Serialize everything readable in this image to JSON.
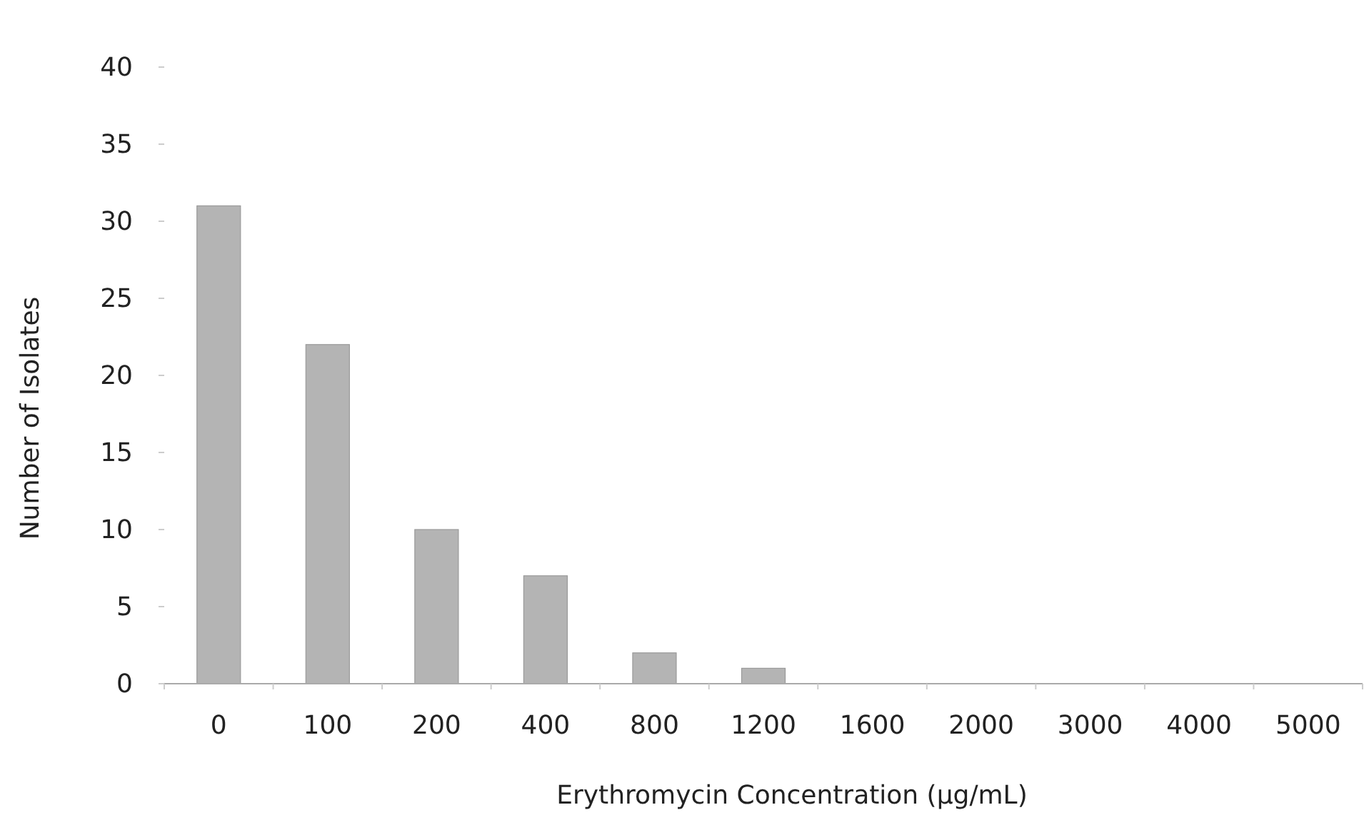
{
  "chart_data": {
    "type": "bar",
    "xlabel": "Erythromycin Concentration (μg/mL)",
    "ylabel": "Number of Isolates",
    "categories": [
      "0",
      "100",
      "200",
      "400",
      "800",
      "1200",
      "1600",
      "2000",
      "3000",
      "4000",
      "5000"
    ],
    "values": [
      31,
      22,
      10,
      7,
      2,
      1,
      0,
      0,
      0,
      0,
      0
    ],
    "color": "#b4b4b4",
    "ylim": [
      0,
      40
    ],
    "yticks": [
      0,
      5,
      10,
      15,
      20,
      25,
      30,
      35,
      40
    ]
  }
}
